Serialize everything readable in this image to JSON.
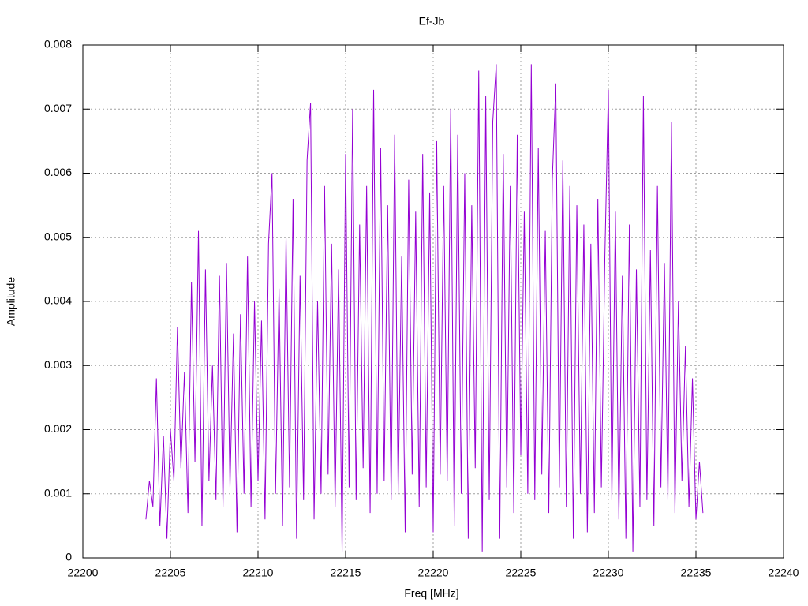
{
  "chart_data": {
    "type": "line",
    "title": "Ef-Jb",
    "xlabel": "Freq [MHz]",
    "ylabel": "Amplitude",
    "xlim": [
      22200,
      22240
    ],
    "xticks": [
      22200,
      22205,
      22210,
      22215,
      22220,
      22225,
      22230,
      22235,
      22240
    ],
    "ylim": [
      0,
      0.008
    ],
    "yticks": [
      0,
      0.001,
      0.002,
      0.003,
      0.004,
      0.005,
      0.006,
      0.007,
      0.008
    ],
    "grid": true,
    "series": [
      {
        "color": "#9400d3",
        "x": [
          22203.6,
          22203.8,
          22204.0,
          22204.2,
          22204.4,
          22204.6,
          22204.8,
          22205.0,
          22205.2,
          22205.4,
          22205.6,
          22205.8,
          22206.0,
          22206.2,
          22206.4,
          22206.6,
          22206.8,
          22207.0,
          22207.2,
          22207.4,
          22207.6,
          22207.8,
          22208.0,
          22208.2,
          22208.4,
          22208.6,
          22208.8,
          22209.0,
          22209.2,
          22209.4,
          22209.6,
          22209.8,
          22210.0,
          22210.2,
          22210.4,
          22210.6,
          22210.8,
          22211.0,
          22211.2,
          22211.4,
          22211.6,
          22211.8,
          22212.0,
          22212.2,
          22212.4,
          22212.6,
          22212.8,
          22213.0,
          22213.2,
          22213.4,
          22213.6,
          22213.8,
          22214.0,
          22214.2,
          22214.4,
          22214.6,
          22214.8,
          22215.0,
          22215.2,
          22215.4,
          22215.6,
          22215.8,
          22216.0,
          22216.2,
          22216.4,
          22216.6,
          22216.8,
          22217.0,
          22217.2,
          22217.4,
          22217.6,
          22217.8,
          22218.0,
          22218.2,
          22218.4,
          22218.6,
          22218.8,
          22219.0,
          22219.2,
          22219.4,
          22219.6,
          22219.8,
          22220.0,
          22220.2,
          22220.4,
          22220.6,
          22220.8,
          22221.0,
          22221.2,
          22221.4,
          22221.6,
          22221.8,
          22222.0,
          22222.2,
          22222.4,
          22222.6,
          22222.8,
          22223.0,
          22223.2,
          22223.4,
          22223.6,
          22223.8,
          22224.0,
          22224.2,
          22224.4,
          22224.6,
          22224.8,
          22225.0,
          22225.2,
          22225.4,
          22225.6,
          22225.8,
          22226.0,
          22226.2,
          22226.4,
          22226.6,
          22226.8,
          22227.0,
          22227.2,
          22227.4,
          22227.6,
          22227.8,
          22228.0,
          22228.2,
          22228.4,
          22228.6,
          22228.8,
          22229.0,
          22229.2,
          22229.4,
          22229.6,
          22229.8,
          22230.0,
          22230.2,
          22230.4,
          22230.6,
          22230.8,
          22231.0,
          22231.2,
          22231.4,
          22231.6,
          22231.8,
          22232.0,
          22232.2,
          22232.4,
          22232.6,
          22232.8,
          22233.0,
          22233.2,
          22233.4,
          22233.6,
          22233.8,
          22234.0,
          22234.2,
          22234.4,
          22234.6,
          22234.8,
          22235.0,
          22235.2,
          22235.4
        ],
        "values": [
          0.0006,
          0.0012,
          0.0008,
          0.0028,
          0.0005,
          0.0019,
          0.0003,
          0.002,
          0.0012,
          0.0036,
          0.0014,
          0.0029,
          0.0007,
          0.0043,
          0.0015,
          0.0051,
          0.0005,
          0.0045,
          0.0012,
          0.003,
          0.0009,
          0.0044,
          0.0008,
          0.0046,
          0.0011,
          0.0035,
          0.0004,
          0.0038,
          0.001,
          0.0047,
          0.0008,
          0.004,
          0.0012,
          0.0037,
          0.0006,
          0.0049,
          0.006,
          0.001,
          0.0042,
          0.0005,
          0.005,
          0.0011,
          0.0056,
          0.0003,
          0.0044,
          0.0009,
          0.0062,
          0.0071,
          0.0006,
          0.004,
          0.001,
          0.0058,
          0.0013,
          0.0049,
          0.0008,
          0.0045,
          0.0001,
          0.0063,
          0.0011,
          0.007,
          0.0009,
          0.0052,
          0.0014,
          0.0058,
          0.0007,
          0.0073,
          0.001,
          0.0064,
          0.0012,
          0.0055,
          0.0009,
          0.0066,
          0.001,
          0.0047,
          0.0004,
          0.0059,
          0.0013,
          0.0054,
          0.0008,
          0.0063,
          0.0011,
          0.0057,
          0.0004,
          0.0065,
          0.0013,
          0.0058,
          0.0012,
          0.007,
          0.0005,
          0.0066,
          0.001,
          0.006,
          0.0003,
          0.0055,
          0.0014,
          0.0076,
          0.0001,
          0.0072,
          0.0009,
          0.0068,
          0.0077,
          0.0003,
          0.0063,
          0.0011,
          0.0058,
          0.0007,
          0.0066,
          0.0016,
          0.0054,
          0.001,
          0.0077,
          0.0009,
          0.0064,
          0.0013,
          0.0051,
          0.0007,
          0.0059,
          0.0074,
          0.0011,
          0.0062,
          0.0008,
          0.0058,
          0.0003,
          0.0055,
          0.001,
          0.0052,
          0.0004,
          0.0049,
          0.0007,
          0.0056,
          0.0011,
          0.0047,
          0.0073,
          0.0009,
          0.0054,
          0.0006,
          0.0044,
          0.0003,
          0.0052,
          0.0001,
          0.0045,
          0.0008,
          0.0072,
          0.0009,
          0.0048,
          0.0005,
          0.0058,
          0.0011,
          0.0046,
          0.0009,
          0.0068,
          0.0007,
          0.004,
          0.0012,
          0.0033,
          0.0008,
          0.0028,
          0.0006,
          0.0015,
          0.0007
        ]
      }
    ]
  }
}
